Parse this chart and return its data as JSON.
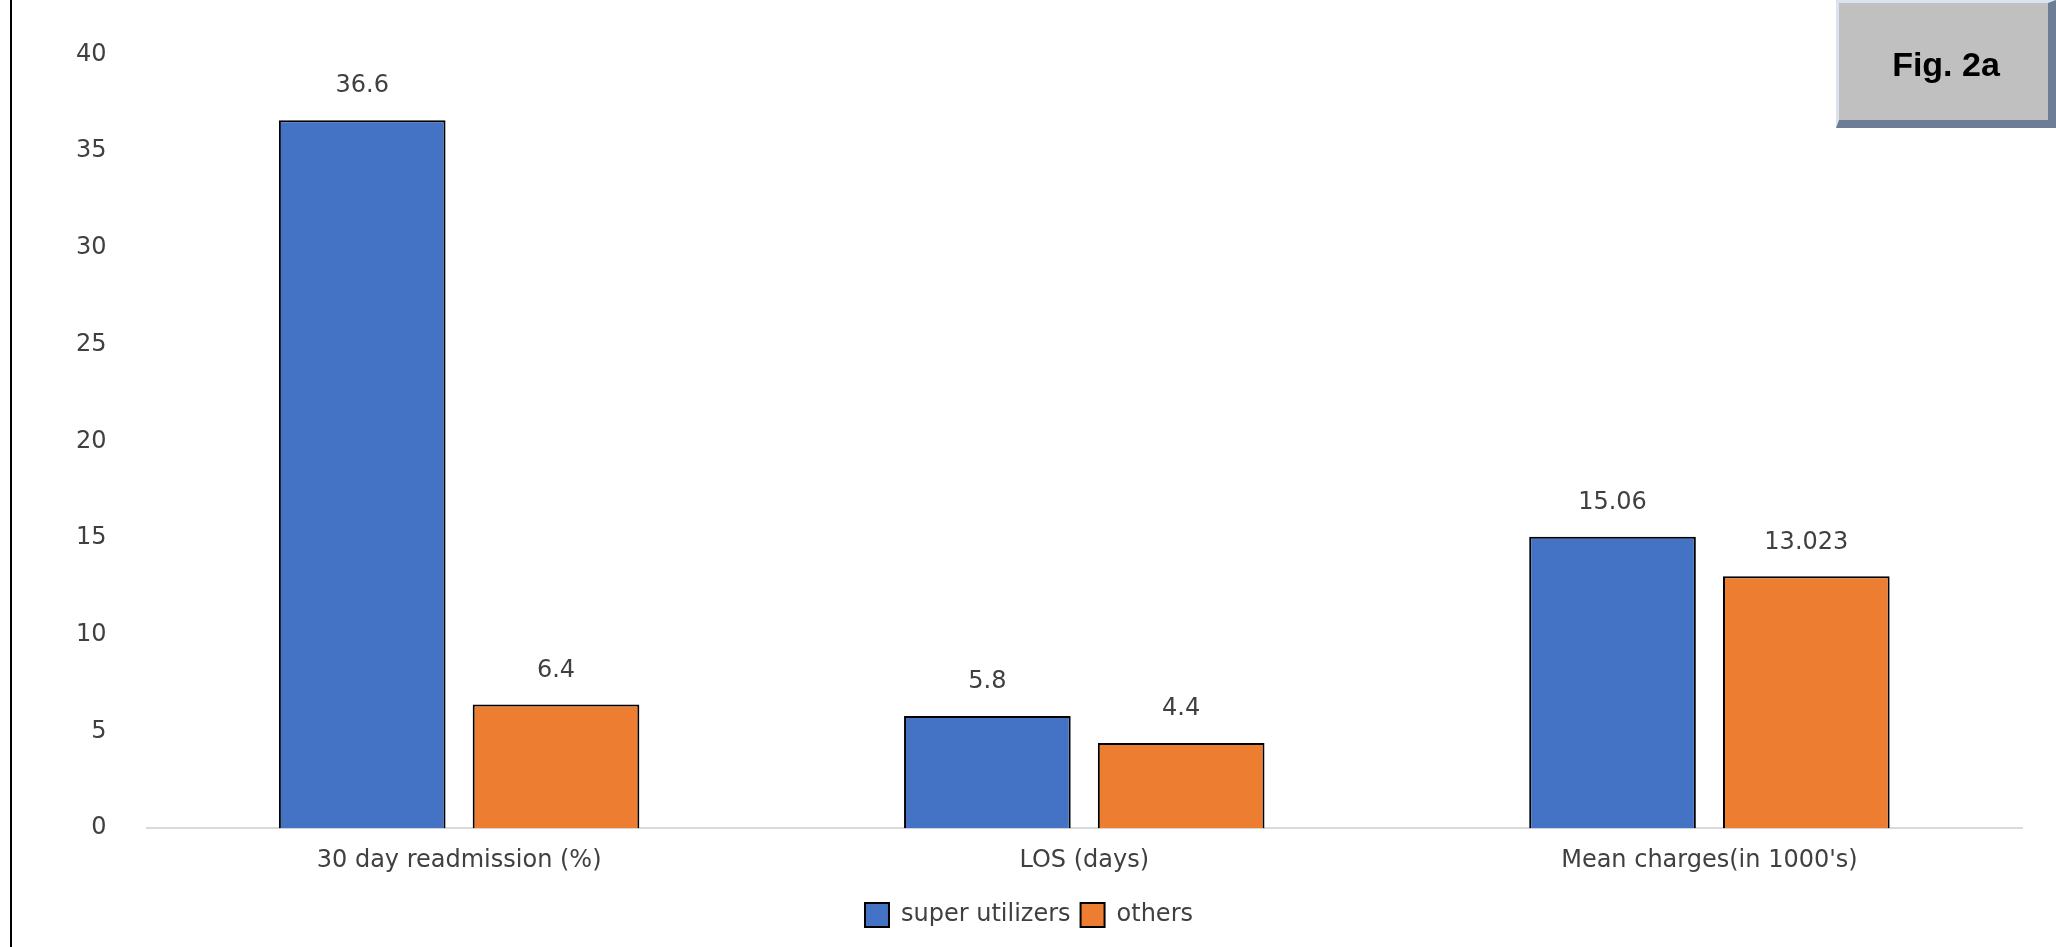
{
  "chart_data": {
    "type": "bar",
    "categories": [
      "30 day readmission (%)",
      "LOS (days)",
      "Mean charges(in 1000's)"
    ],
    "series": [
      {
        "name": "super utilizers",
        "color": "#4472c4",
        "values": [
          36.6,
          5.8,
          15.06
        ]
      },
      {
        "name": "others",
        "color": "#ed7d31",
        "values": [
          6.4,
          4.4,
          13.023
        ]
      }
    ],
    "ylim": [
      0,
      40
    ],
    "yticks": [
      0,
      5,
      10,
      15,
      20,
      25,
      30,
      35,
      40
    ],
    "grid": false,
    "legend": "bottom",
    "data_labels": true,
    "annotations": [
      "Fig. 2a"
    ]
  }
}
